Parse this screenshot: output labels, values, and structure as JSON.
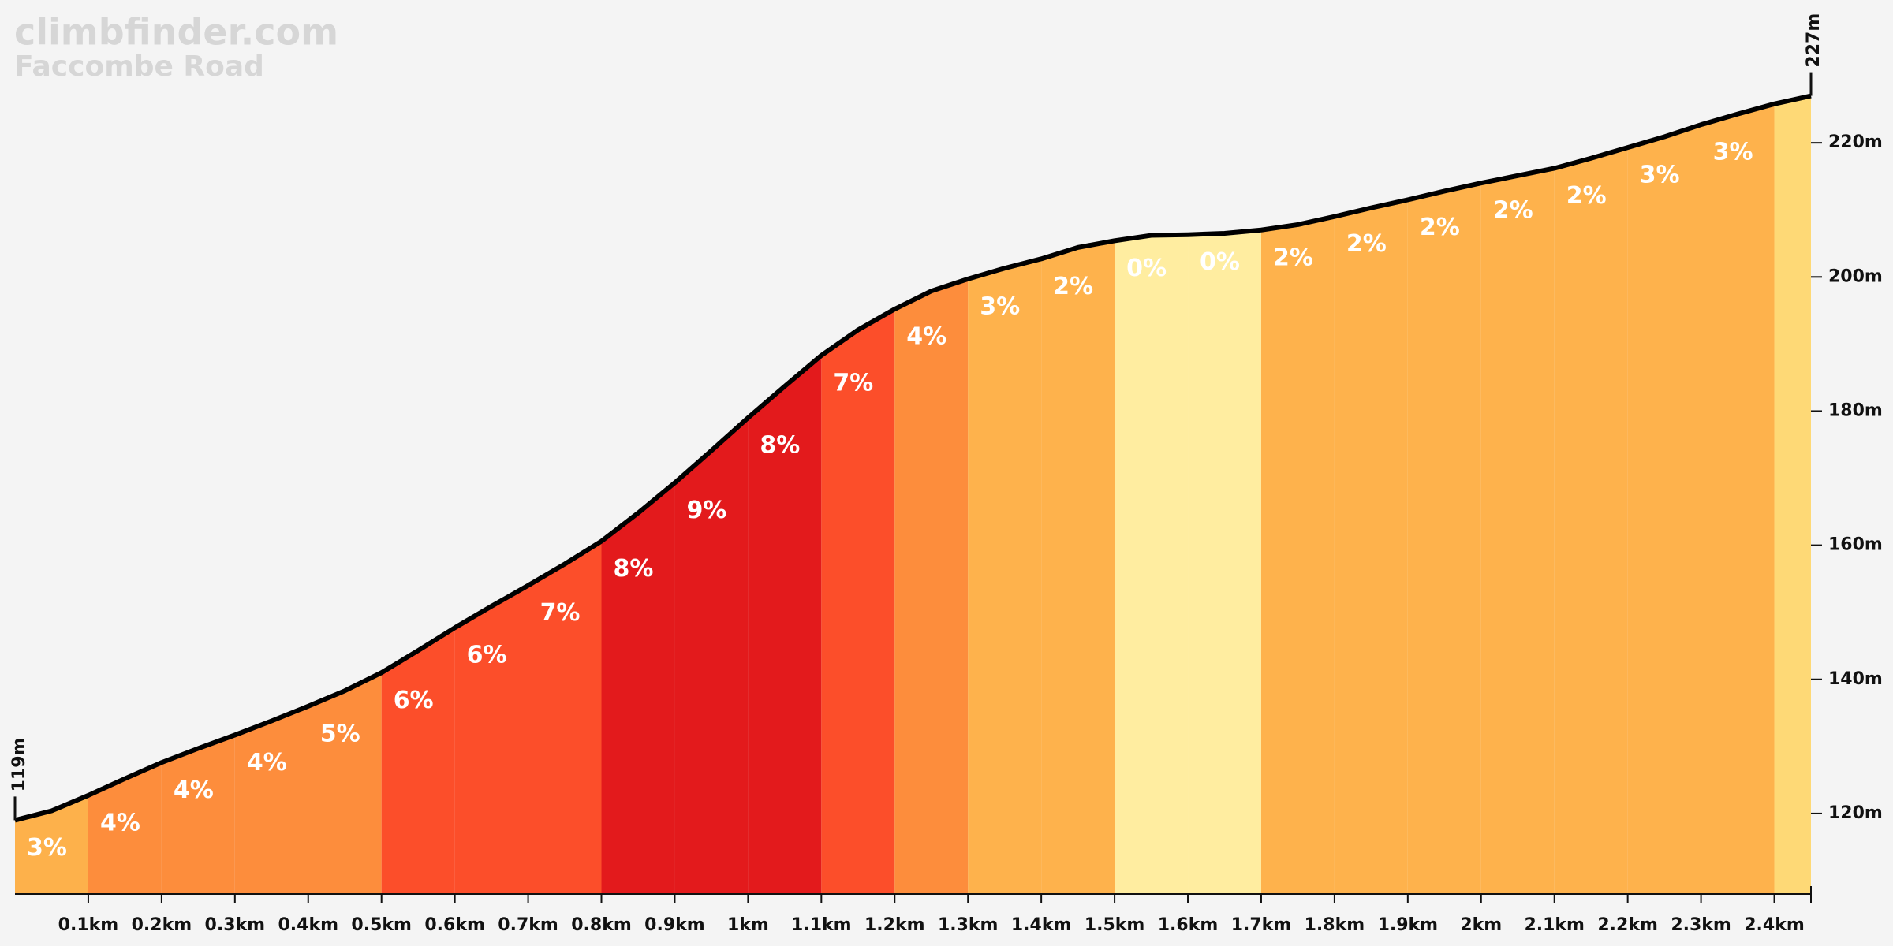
{
  "chart_data": {
    "type": "area",
    "title": "climbfinder.com",
    "subtitle": "Faccombe Road",
    "x": [
      0,
      0.05,
      0.1,
      0.15,
      0.2,
      0.25,
      0.3,
      0.35,
      0.4,
      0.45,
      0.5,
      0.55,
      0.6,
      0.65,
      0.7,
      0.75,
      0.8,
      0.85,
      0.9,
      0.95,
      1.0,
      1.05,
      1.1,
      1.15,
      1.2,
      1.25,
      1.3,
      1.35,
      1.4,
      1.45,
      1.5,
      1.55,
      1.6,
      1.65,
      1.7,
      1.75,
      1.8,
      1.85,
      1.9,
      1.95,
      2.0,
      2.05,
      2.1,
      2.15,
      2.2,
      2.25,
      2.3,
      2.35,
      2.4,
      2.45
    ],
    "values": [
      119,
      120.4,
      122.7,
      125.2,
      127.6,
      129.7,
      131.7,
      133.8,
      136,
      138.3,
      141,
      144.3,
      147.7,
      150.9,
      154,
      157.2,
      160.6,
      164.8,
      169.3,
      174.1,
      179,
      183.7,
      188.3,
      192.1,
      195.2,
      197.9,
      199.7,
      201.3,
      202.7,
      204.4,
      205.4,
      206.2,
      206.3,
      206.5,
      207,
      207.8,
      209,
      210.3,
      211.5,
      212.8,
      214,
      215.1,
      216.2,
      217.7,
      219.3,
      220.9,
      222.7,
      224.3,
      225.8,
      227
    ],
    "line_color": "#000000",
    "xlim": [
      0,
      2.45
    ],
    "ylim": [
      108,
      240
    ],
    "xticks": [
      {
        "value": 0.1,
        "label": "0.1km"
      },
      {
        "value": 0.2,
        "label": "0.2km"
      },
      {
        "value": 0.3,
        "label": "0.3km"
      },
      {
        "value": 0.4,
        "label": "0.4km"
      },
      {
        "value": 0.5,
        "label": "0.5km"
      },
      {
        "value": 0.6,
        "label": "0.6km"
      },
      {
        "value": 0.7,
        "label": "0.7km"
      },
      {
        "value": 0.8,
        "label": "0.8km"
      },
      {
        "value": 0.9,
        "label": "0.9km"
      },
      {
        "value": 1,
        "label": "1km"
      },
      {
        "value": 1.1,
        "label": "1.1km"
      },
      {
        "value": 1.2,
        "label": "1.2km"
      },
      {
        "value": 1.3,
        "label": "1.3km"
      },
      {
        "value": 1.4,
        "label": "1.4km"
      },
      {
        "value": 1.5,
        "label": "1.5km"
      },
      {
        "value": 1.6,
        "label": "1.6km"
      },
      {
        "value": 1.7,
        "label": "1.7km"
      },
      {
        "value": 1.8,
        "label": "1.8km"
      },
      {
        "value": 1.9,
        "label": "1.9km"
      },
      {
        "value": 2,
        "label": "2km"
      },
      {
        "value": 2.1,
        "label": "2.1km"
      },
      {
        "value": 2.2,
        "label": "2.2km"
      },
      {
        "value": 2.3,
        "label": "2.3km"
      },
      {
        "value": 2.4,
        "label": "2.4km"
      }
    ],
    "yticks": [
      {
        "value": 120,
        "label": "120m"
      },
      {
        "value": 140,
        "label": "140m"
      },
      {
        "value": 160,
        "label": "160m"
      },
      {
        "value": 180,
        "label": "180m"
      },
      {
        "value": 200,
        "label": "200m"
      },
      {
        "value": 220,
        "label": "220m"
      }
    ],
    "start_elevation": {
      "value": 119,
      "label": "119m"
    },
    "end_elevation": {
      "value": 227,
      "label": "227m"
    },
    "segments": {
      "edges": [
        0,
        0.1,
        0.2,
        0.3,
        0.4,
        0.5,
        0.6,
        0.7,
        0.8,
        0.9,
        1.0,
        1.1,
        1.2,
        1.3,
        1.4,
        1.5,
        1.6,
        1.7,
        1.8,
        1.9,
        2.0,
        2.1,
        2.2,
        2.3,
        2.4,
        2.45
      ],
      "grades": [
        3,
        4,
        4,
        4,
        5,
        6,
        6,
        7,
        8,
        9,
        8,
        7,
        4,
        3,
        2,
        0,
        0,
        2,
        2,
        2,
        2,
        2,
        3,
        3,
        2
      ],
      "value_labels": [
        "3%",
        "4%",
        "4%",
        "4%",
        "5%",
        "6%",
        "6%",
        "7%",
        "8%",
        "9%",
        "8%",
        "7%",
        "4%",
        "3%",
        "2%",
        "0%",
        "0%",
        "2%",
        "2%",
        "2%",
        "2%",
        "2%",
        "3%",
        "3%",
        null
      ],
      "colors": [
        "#fdb14b",
        "#fd8d3c",
        "#fd8d3c",
        "#fd8d3c",
        "#fd8d3c",
        "#fc4e2a",
        "#fc4e2a",
        "#fc4e2a",
        "#e31a1c",
        "#e31a1c",
        "#e31a1c",
        "#fc4e2a",
        "#fd8d3c",
        "#feb24c",
        "#feb24c",
        "#ffeda0",
        "#ffeda0",
        "#feb24c",
        "#feb24c",
        "#feb24c",
        "#feb24c",
        "#feb24c",
        "#feb24c",
        "#feb24c",
        "#fed976"
      ]
    }
  }
}
